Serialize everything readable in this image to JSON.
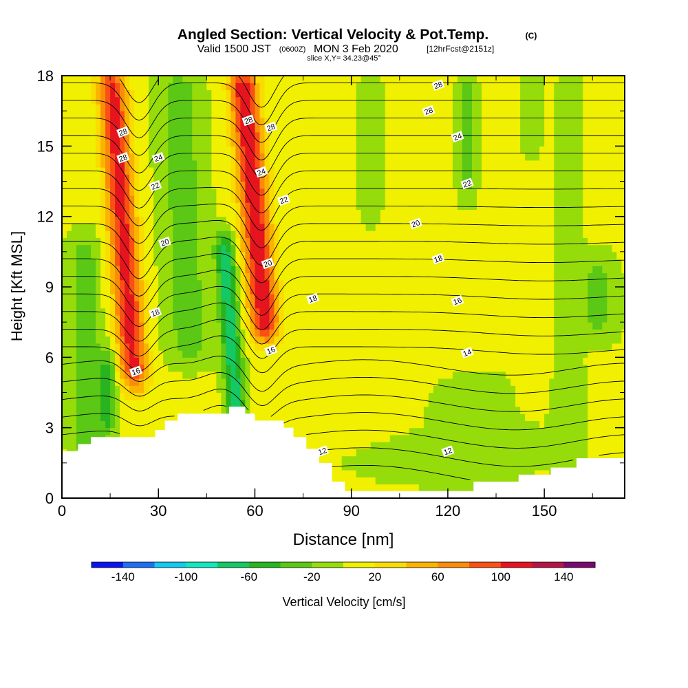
{
  "chart_data": {
    "type": "heatmap",
    "title": "Angled Section: Vertical Velocity & Pot.Temp.",
    "copyright": "(C)",
    "subtitle": {
      "valid": "Valid 1500 JST",
      "utc": "(0600Z)",
      "date": "MON 3 Feb 2020",
      "forecast": "[12hrFcst@2151z]",
      "slice": "slice X,Y= 34.23@45°"
    },
    "xlabel": "Distance [nm]",
    "ylabel": "Height [Kft MSL]",
    "xlim": [
      0,
      175
    ],
    "ylim": [
      0,
      18
    ],
    "x_ticks": [
      0,
      30,
      60,
      90,
      120,
      150
    ],
    "y_ticks": [
      0,
      3,
      6,
      9,
      12,
      15,
      18
    ],
    "colorbar": {
      "label": "Vertical Velocity [cm/s]",
      "tick_labels": [
        -140,
        -100,
        -60,
        -20,
        20,
        60,
        100,
        140
      ],
      "bounds": [
        -160,
        -140,
        -120,
        -100,
        -80,
        -60,
        -40,
        -20,
        0,
        20,
        40,
        60,
        80,
        100,
        120,
        140,
        160
      ],
      "colors": [
        "#0a14f0",
        "#1e6ef0",
        "#14c8f0",
        "#14e6be",
        "#14c864",
        "#28b41e",
        "#5ac814",
        "#96dc0a",
        "#f0f000",
        "#fadc00",
        "#fab400",
        "#fa8c0a",
        "#fa5014",
        "#e6141e",
        "#b41446",
        "#780a6e"
      ]
    },
    "terrain": [
      [
        0,
        2.0
      ],
      [
        5,
        2.3
      ],
      [
        9,
        2.6
      ],
      [
        29,
        2.9
      ],
      [
        32,
        3.3
      ],
      [
        36,
        3.6
      ],
      [
        52,
        3.9
      ],
      [
        57,
        3.6
      ],
      [
        60,
        3.3
      ],
      [
        69,
        3.0
      ],
      [
        72,
        2.6
      ],
      [
        76,
        2.1
      ],
      [
        80,
        1.5
      ],
      [
        84,
        0.7
      ],
      [
        88,
        0.3
      ],
      [
        128,
        0.7
      ],
      [
        142,
        1.0
      ],
      [
        152,
        1.3
      ],
      [
        160,
        1.7
      ],
      [
        175,
        1.7
      ]
    ],
    "isentrope_labels": [
      {
        "v": "28",
        "x": 19,
        "y": 15.6
      },
      {
        "v": "28",
        "x": 19,
        "y": 14.5
      },
      {
        "v": "24",
        "x": 30,
        "y": 14.5
      },
      {
        "v": "22",
        "x": 29,
        "y": 13.3
      },
      {
        "v": "20",
        "x": 32,
        "y": 10.9
      },
      {
        "v": "18",
        "x": 29,
        "y": 7.9
      },
      {
        "v": "16",
        "x": 23,
        "y": 5.4
      },
      {
        "v": "28",
        "x": 58,
        "y": 16.1
      },
      {
        "v": "28",
        "x": 65,
        "y": 15.8
      },
      {
        "v": "24",
        "x": 62,
        "y": 13.9
      },
      {
        "v": "22",
        "x": 69,
        "y": 12.7
      },
      {
        "v": "20",
        "x": 64,
        "y": 10.0
      },
      {
        "v": "16",
        "x": 65,
        "y": 6.3
      },
      {
        "v": "18",
        "x": 78,
        "y": 8.5
      },
      {
        "v": "12",
        "x": 81,
        "y": 2.0
      },
      {
        "v": "28",
        "x": 117,
        "y": 17.6
      },
      {
        "v": "28",
        "x": 114,
        "y": 16.5
      },
      {
        "v": "24",
        "x": 123,
        "y": 15.4
      },
      {
        "v": "22",
        "x": 126,
        "y": 13.4
      },
      {
        "v": "20",
        "x": 110,
        "y": 11.7
      },
      {
        "v": "18",
        "x": 117,
        "y": 10.2
      },
      {
        "v": "16",
        "x": 123,
        "y": 8.4
      },
      {
        "v": "14",
        "x": 126,
        "y": 6.2
      },
      {
        "v": "12",
        "x": 120,
        "y": 2.0
      }
    ],
    "vertical_velocity_features": [
      {
        "x": 23,
        "zb": 4,
        "zt": 19,
        "hw": 4.5,
        "amp": 105,
        "tilt": -0.55
      },
      {
        "x": 64,
        "zb": 6,
        "zt": 19,
        "hw": 4.5,
        "amp": 115,
        "tilt": -0.65
      },
      {
        "x": 7,
        "zb": 1,
        "zt": 12,
        "hw": 5,
        "amp": -35,
        "tilt": 0
      },
      {
        "x": 14,
        "zb": 2,
        "zt": 7,
        "hw": 3,
        "amp": -55,
        "tilt": 0
      },
      {
        "x": 40,
        "zb": 5,
        "zt": 19,
        "hw": 7,
        "amp": -35,
        "tilt": -0.3
      },
      {
        "x": 55,
        "zb": 2,
        "zt": 12,
        "hw": 3,
        "amp": -80,
        "tilt": -0.5
      },
      {
        "x": 167,
        "zb": 6,
        "zt": 11,
        "hw": 6,
        "amp": -30,
        "tilt": 0
      },
      {
        "x": 126,
        "zb": 12,
        "zt": 19,
        "hw": 3,
        "amp": -30,
        "tilt": 0
      },
      {
        "x": 146,
        "zb": 14,
        "zt": 19,
        "hw": 3,
        "amp": -25,
        "tilt": 0
      },
      {
        "x": 130,
        "zb": 0,
        "zt": 6,
        "hw": 20,
        "amp": -12,
        "tilt": 0
      },
      {
        "x": 110,
        "zb": 0,
        "zt": 3,
        "hw": 25,
        "amp": -12,
        "tilt": 0
      },
      {
        "x": 158,
        "zb": 0,
        "zt": 19,
        "hw": 5,
        "amp": -12,
        "tilt": 0
      },
      {
        "x": 96,
        "zb": 11,
        "zt": 19,
        "hw": 4,
        "amp": -15,
        "tilt": 0
      },
      {
        "x": 100,
        "zb": 3,
        "zt": 10,
        "hw": 10,
        "amp": 10,
        "tilt": 0
      },
      {
        "x": 145,
        "zb": 3,
        "zt": 9,
        "hw": 4,
        "amp": 10,
        "tilt": 0
      }
    ],
    "vertical_velocity_background": 5
  }
}
